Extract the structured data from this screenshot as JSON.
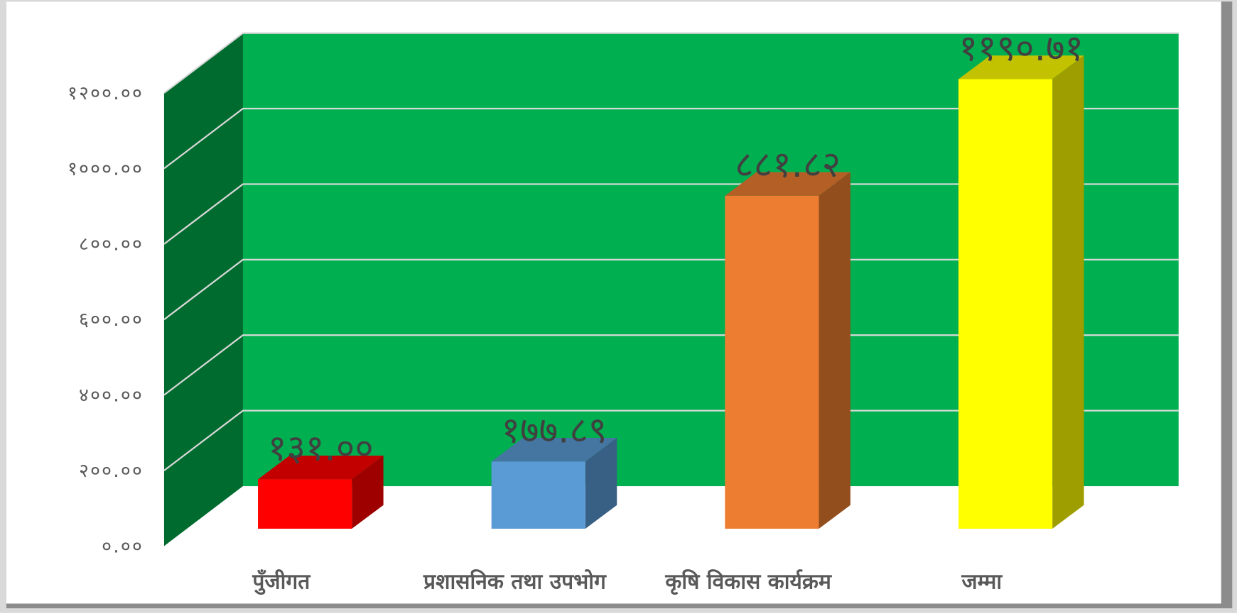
{
  "chart_data": {
    "type": "bar3d",
    "categories": [
      "पुँजीगत",
      "प्रशासनिक तथा उपभोग",
      "कृषि विकास कार्यक्रम",
      "जम्मा"
    ],
    "values": [
      131.0,
      177.89,
      881.82,
      1190.71
    ],
    "value_labels": [
      "१३१.००",
      "१७७.८९",
      "८८१.८२",
      "११९०.७१"
    ],
    "colors": [
      "#ff0000",
      "#5b9bd5",
      "#ed7d31",
      "#ffff00"
    ],
    "wall_color": "#00b050",
    "side_wall_color": "#006b2f",
    "ylim": [
      0,
      1200
    ],
    "yticks": [
      {
        "value": 0,
        "label": "०.००"
      },
      {
        "value": 200,
        "label": "२००.००"
      },
      {
        "value": 400,
        "label": "४००.००"
      },
      {
        "value": 600,
        "label": "६००.००"
      },
      {
        "value": 800,
        "label": "८००.००"
      },
      {
        "value": 1000,
        "label": "१०००.००"
      },
      {
        "value": 1200,
        "label": "१२००.००"
      }
    ],
    "grid": true
  }
}
